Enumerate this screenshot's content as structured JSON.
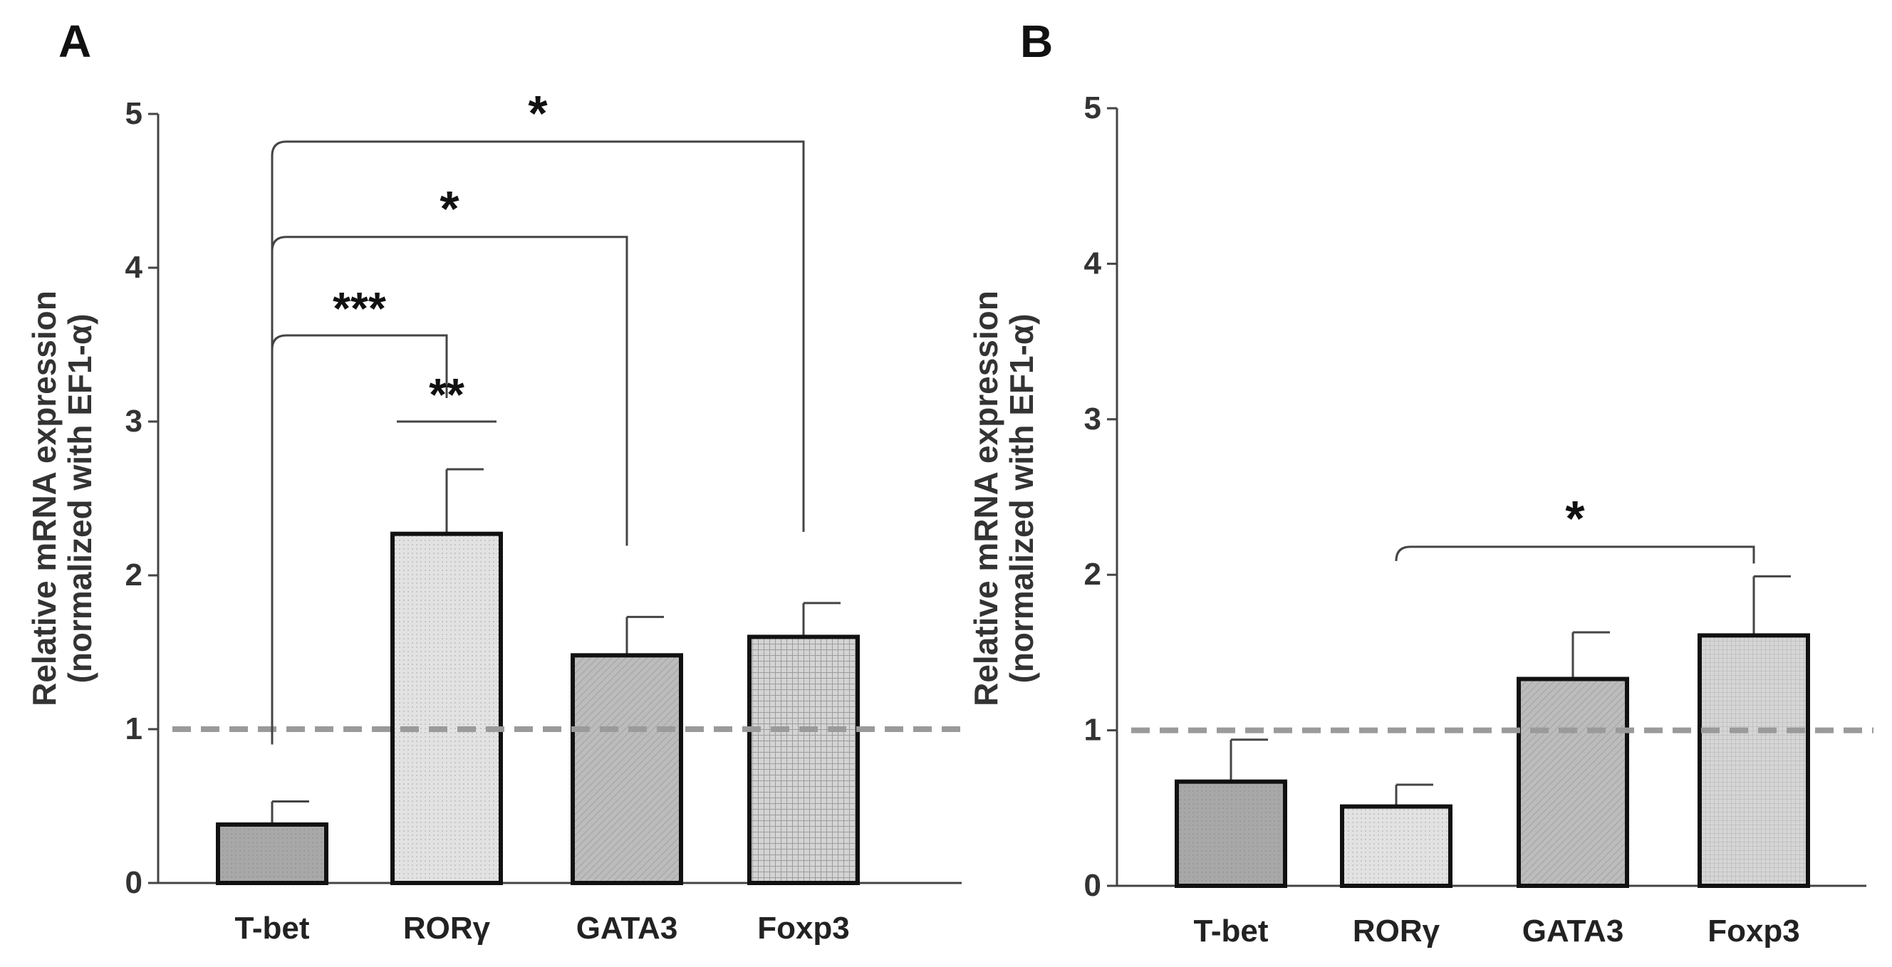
{
  "colors": {
    "bar_dark": "#a8a8a8",
    "bar_light": "#dedede",
    "bar_mid": "#b9b9b9",
    "bar_grid": "#c4c4c4",
    "ref_line": "#9a9a9a",
    "axis": "#444444",
    "text": "#222222"
  },
  "chart_data": [
    {
      "panel_label": "A",
      "type": "bar",
      "ylabel_line1": "Relative mRNA expression",
      "ylabel_line2": "(normalized with EF1-α)",
      "ylim": [
        0,
        5
      ],
      "yticks": [
        "0",
        "1",
        "2",
        "3",
        "4",
        "5"
      ],
      "categories": [
        "T-bet",
        "RORγ",
        "GATA3",
        "Foxp3"
      ],
      "values": [
        0.38,
        2.27,
        1.48,
        1.6
      ],
      "errors": [
        0.15,
        0.42,
        0.25,
        0.22
      ],
      "patterns": [
        "pat-dark",
        "pat-dots",
        "pat-hatch",
        "pat-grid"
      ],
      "reference_line": 1.0,
      "significance": [
        {
          "from": 0,
          "to": 3,
          "label": "*",
          "level": 4.82
        },
        {
          "from": 0,
          "to": 2,
          "label": "*",
          "level": 4.2
        },
        {
          "from": 0,
          "to": 1,
          "label": "***",
          "level": 3.56
        },
        {
          "from": 1,
          "to": 1,
          "label": "**",
          "level": 3.0,
          "short": true
        }
      ]
    },
    {
      "panel_label": "B",
      "type": "bar",
      "ylabel_line1": "Relative mRNA expression",
      "ylabel_line2": "(normalized with EF1-α)",
      "ylim": [
        0,
        5
      ],
      "yticks": [
        "0",
        "1",
        "2",
        "3",
        "4",
        "5"
      ],
      "categories": [
        "T-bet",
        "RORγ",
        "GATA3",
        "Foxp3"
      ],
      "values": [
        0.67,
        0.51,
        1.33,
        1.61
      ],
      "errors": [
        0.27,
        0.14,
        0.3,
        0.38
      ],
      "patterns": [
        "pat-dark",
        "pat-dots",
        "pat-hatch",
        "pat-fine"
      ],
      "reference_line": 1.0,
      "significance": [
        {
          "from": 1,
          "to": 3,
          "label": "*",
          "level": 2.18
        }
      ]
    }
  ]
}
